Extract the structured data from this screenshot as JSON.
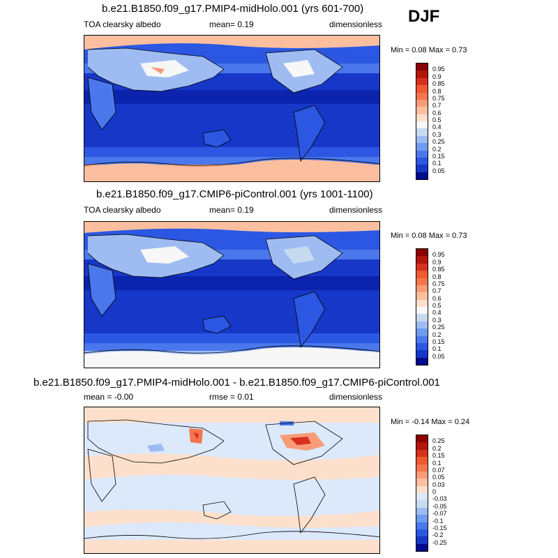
{
  "season": "DJF",
  "panels": [
    {
      "id": "top",
      "title": "b.e21.B1850.f09_g17.PMIP4-midHolo.001 (yrs 601-700)",
      "left_label": "TOA clearsky albedo",
      "center_label": "mean=   0.19",
      "right_label": "dimensionless",
      "minmax": "Min =   0.08 Max =   0.73",
      "colorbar": {
        "labels": [
          "0.95",
          "0.9",
          "0.85",
          "0.8",
          "0.75",
          "0.7",
          "0.6",
          "0.5",
          "0.4",
          "0.3",
          "0.25",
          "0.2",
          "0.15",
          "0.1",
          "0.05"
        ],
        "colors": [
          "#8b0000",
          "#b2160a",
          "#d7301f",
          "#ef5a32",
          "#f4764d",
          "#f89b78",
          "#fbbf9f",
          "#fde0cc",
          "#f7f7f7",
          "#c6dbef",
          "#9ebcf2",
          "#6f9bf0",
          "#4a78ec",
          "#2c57e3",
          "#1637c8",
          "#000a8c"
        ]
      }
    },
    {
      "id": "middle",
      "title": "b.e21.B1850.f09_g17.CMIP6-piControl.001 (yrs 1001-1100)",
      "left_label": "TOA clearsky albedo",
      "center_label": "mean=   0.19",
      "right_label": "dimensionless",
      "minmax": "Min =   0.08 Max =   0.73",
      "colorbar": {
        "labels": [
          "0.95",
          "0.9",
          "0.85",
          "0.8",
          "0.75",
          "0.7",
          "0.6",
          "0.5",
          "0.4",
          "0.3",
          "0.25",
          "0.2",
          "0.15",
          "0.1",
          "0.05"
        ],
        "colors": [
          "#8b0000",
          "#b2160a",
          "#d7301f",
          "#ef5a32",
          "#f4764d",
          "#f89b78",
          "#fbbf9f",
          "#fde0cc",
          "#f7f7f7",
          "#c6dbef",
          "#9ebcf2",
          "#6f9bf0",
          "#4a78ec",
          "#2c57e3",
          "#1637c8",
          "#000a8c"
        ]
      }
    },
    {
      "id": "bottom",
      "title": "b.e21.B1850.f09_g17.PMIP4-midHolo.001 - b.e21.B1850.f09_g17.CMIP6-piControl.001",
      "left_label": "mean =  -0.00",
      "center_label": "rmse =   0.01",
      "right_label": "dimensionless",
      "minmax": "Min =  -0.14 Max =   0.24",
      "colorbar": {
        "labels": [
          "0.25",
          "0.2",
          "0.15",
          "0.1",
          "0.07",
          "0.05",
          "0.03",
          "0",
          "-0.03",
          "-0.05",
          "-0.07",
          "-0.1",
          "-0.15",
          "-0.2",
          "-0.25"
        ],
        "colors": [
          "#8b0000",
          "#b2160a",
          "#d7301f",
          "#ef5a32",
          "#f4764d",
          "#f89b78",
          "#fbbf9f",
          "#fde0cc",
          "#dce9fb",
          "#c6dbef",
          "#9ebcf2",
          "#6f9bf0",
          "#4a78ec",
          "#2c57e3",
          "#1637c8",
          "#000a8c"
        ]
      }
    }
  ]
}
